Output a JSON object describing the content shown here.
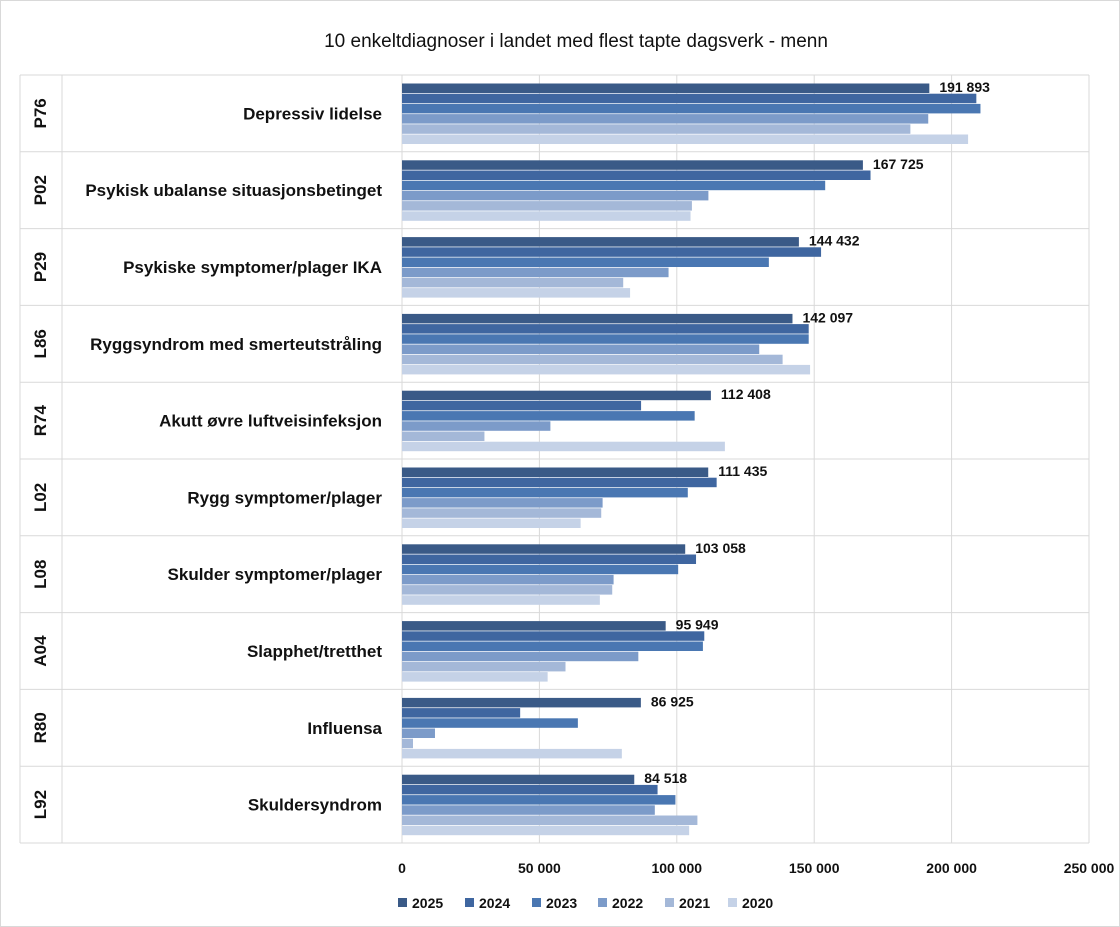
{
  "chart_data": {
    "type": "bar",
    "orientation": "horizontal",
    "title": "10 enkeltdiagnoser i landet med flest tapte dagsverk - menn",
    "categories": [
      {
        "code": "P76",
        "label": "Depressiv lidelse"
      },
      {
        "code": "P02",
        "label": "Psykisk ubalanse situasjonsbetinget"
      },
      {
        "code": "P29",
        "label": "Psykiske symptomer/plager IKA"
      },
      {
        "code": "L86",
        "label": "Ryggsyndrom med smerteutstråling"
      },
      {
        "code": "R74",
        "label": "Akutt øvre luftveisinfeksjon"
      },
      {
        "code": "L02",
        "label": "Rygg symptomer/plager"
      },
      {
        "code": "L08",
        "label": "Skulder symptomer/plager"
      },
      {
        "code": "A04",
        "label": "Slapphet/tretthet"
      },
      {
        "code": "R80",
        "label": "Influensa"
      },
      {
        "code": "L92",
        "label": "Skuldersyndrom"
      }
    ],
    "series": [
      {
        "name": "2025",
        "color": "#3a5a87",
        "values": [
          191893,
          167725,
          144432,
          142097,
          112408,
          111435,
          103058,
          95949,
          86925,
          84518
        ]
      },
      {
        "name": "2024",
        "color": "#3f66a0",
        "values": [
          209000,
          170500,
          152500,
          148000,
          87000,
          114500,
          107000,
          110000,
          43000,
          93000
        ]
      },
      {
        "name": "2023",
        "color": "#4a77b2",
        "values": [
          210500,
          154000,
          133500,
          148000,
          106500,
          104000,
          100500,
          109500,
          64000,
          99500
        ]
      },
      {
        "name": "2022",
        "color": "#7c9bc9",
        "values": [
          191500,
          111500,
          97000,
          130000,
          54000,
          73000,
          77000,
          86000,
          12000,
          92000
        ]
      },
      {
        "name": "2021",
        "color": "#a4b8d8",
        "values": [
          185000,
          105500,
          80500,
          138500,
          30000,
          72500,
          76500,
          59500,
          4000,
          107500
        ]
      },
      {
        "name": "2020",
        "color": "#c5d2e7",
        "values": [
          206000,
          105000,
          83000,
          148500,
          117500,
          65000,
          72000,
          53000,
          80000,
          104500
        ]
      }
    ],
    "data_labels": [
      "191 893",
      "167 725",
      "144 432",
      "142 097",
      "112 408",
      "111 435",
      "103 058",
      "95 949",
      "86 925",
      "84 518"
    ],
    "xlim": [
      0,
      250000
    ],
    "xticks": [
      0,
      50000,
      100000,
      150000,
      200000,
      250000
    ],
    "xtick_labels": [
      "0",
      "50 000",
      "100 000",
      "150 000",
      "200 000",
      "250 000"
    ],
    "xlabel": "",
    "ylabel": "",
    "grid": "vertical",
    "legend": "bottom"
  }
}
